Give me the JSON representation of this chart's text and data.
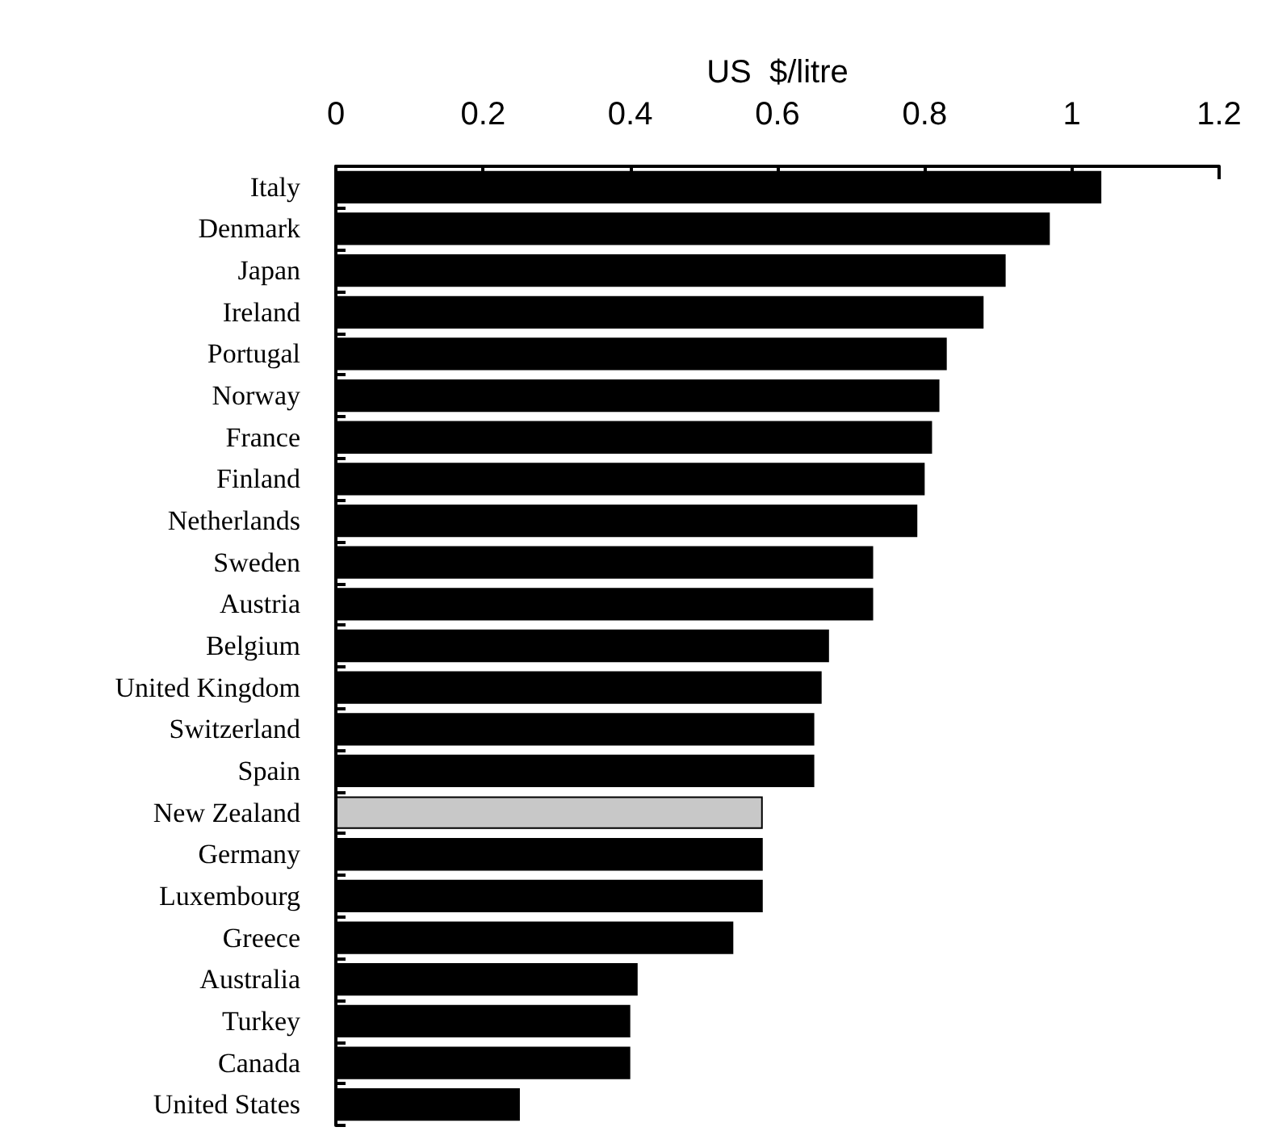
{
  "chart_data": {
    "type": "bar",
    "orientation": "horizontal",
    "xlabel": "US  $/litre",
    "categories": [
      "Italy",
      "Denmark",
      "Japan",
      "Ireland",
      "Portugal",
      "Norway",
      "France",
      "Finland",
      "Netherlands",
      "Sweden",
      "Austria",
      "Belgium",
      "United Kingdom",
      "Switzerland",
      "Spain",
      "New Zealand",
      "Germany",
      "Luxembourg",
      "Greece",
      "Australia",
      "Turkey",
      "Canada",
      "United States"
    ],
    "values": [
      1.04,
      0.97,
      0.91,
      0.88,
      0.83,
      0.82,
      0.81,
      0.8,
      0.79,
      0.73,
      0.73,
      0.67,
      0.66,
      0.65,
      0.65,
      0.58,
      0.58,
      0.58,
      0.54,
      0.41,
      0.4,
      0.4,
      0.25
    ],
    "colors": [
      "#000000",
      "#000000",
      "#000000",
      "#000000",
      "#000000",
      "#000000",
      "#000000",
      "#000000",
      "#000000",
      "#000000",
      "#000000",
      "#000000",
      "#000000",
      "#000000",
      "#000000",
      "#c8c8c8",
      "#000000",
      "#000000",
      "#000000",
      "#000000",
      "#000000",
      "#000000",
      "#000000"
    ],
    "xlim": [
      0,
      1.2
    ],
    "xticks": [
      0,
      0.2,
      0.4,
      0.6,
      0.8,
      1,
      1.2
    ],
    "grid": false
  }
}
